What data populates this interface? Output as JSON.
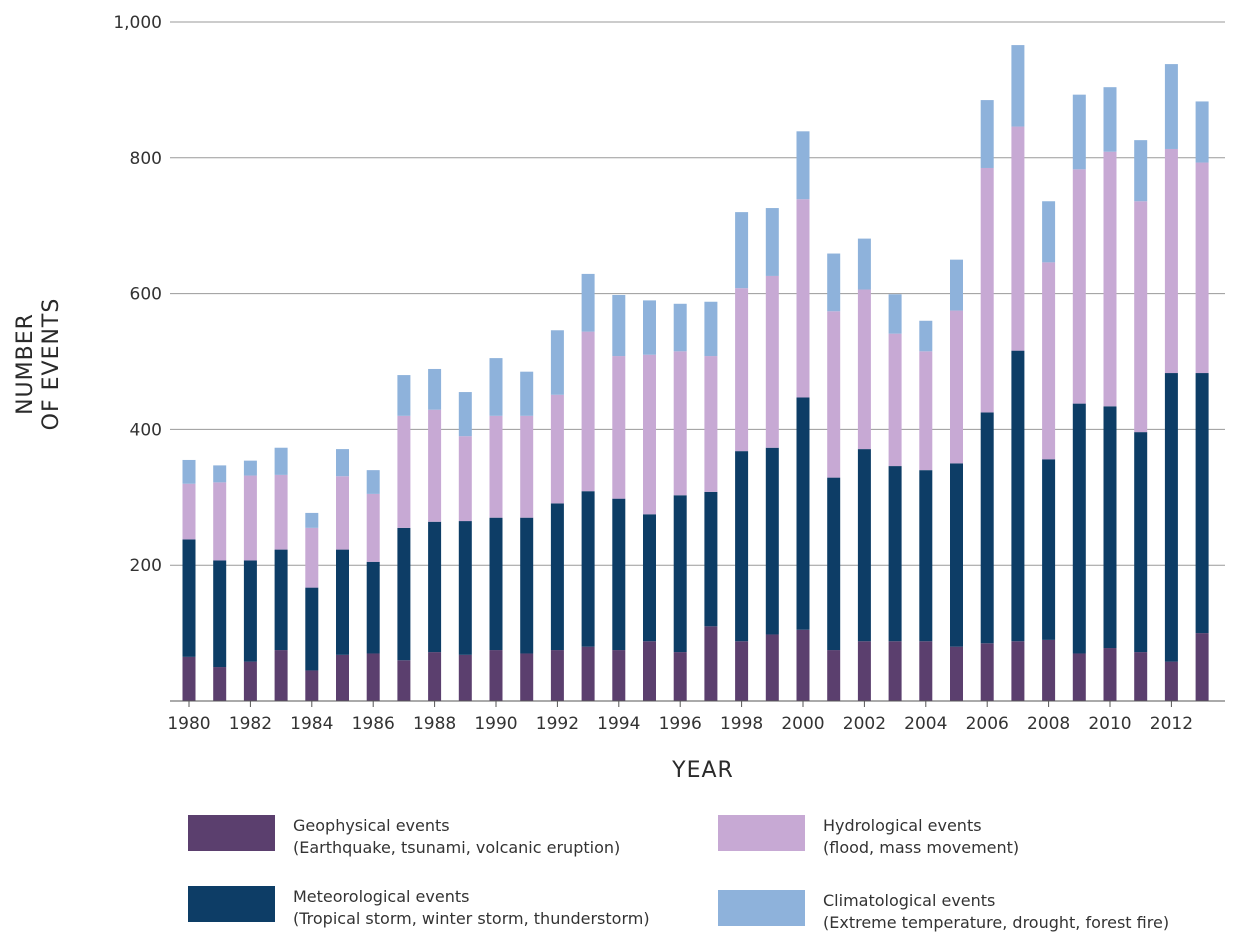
{
  "chart_data": {
    "type": "bar",
    "stacked": true,
    "xlabel": "YEAR",
    "ylabel": [
      "NUMBER",
      "OF EVENTS"
    ],
    "ylim": [
      0,
      1000
    ],
    "yticks": [
      200,
      400,
      600,
      800,
      1000
    ],
    "ytick_labels": [
      "200",
      "400",
      "600",
      "800",
      "1,000"
    ],
    "grid": true,
    "legend_position": "bottom",
    "categories": [
      "1980",
      "1981",
      "1982",
      "1983",
      "1984",
      "1985",
      "1986",
      "1987",
      "1988",
      "1989",
      "1990",
      "1991",
      "1992",
      "1993",
      "1994",
      "1995",
      "1996",
      "1997",
      "1998",
      "1999",
      "2000",
      "2001",
      "2002",
      "2003",
      "2004",
      "2005",
      "2006",
      "2007",
      "2008",
      "2009",
      "2010",
      "2011",
      "2012",
      "2013"
    ],
    "xtick_labels": [
      "1980",
      "1982",
      "1984",
      "1986",
      "1988",
      "1990",
      "1992",
      "1994",
      "1996",
      "1998",
      "2000",
      "2002",
      "2004",
      "2006",
      "2008",
      "2010",
      "2012"
    ],
    "series": [
      {
        "name": "Geophysical events",
        "description": "(Earthquake, tsunami, volcanic eruption)",
        "color": "#5b3f6e",
        "values": [
          65,
          50,
          58,
          75,
          45,
          68,
          70,
          60,
          72,
          68,
          75,
          70,
          75,
          80,
          75,
          88,
          72,
          110,
          88,
          98,
          105,
          75,
          88,
          88,
          88,
          80,
          85,
          88,
          90,
          70,
          78,
          72,
          58,
          100
        ]
      },
      {
        "name": "Meteorological events",
        "description": "(Tropical storm, winter storm, thunderstorm)",
        "color": "#0d3d66",
        "values": [
          173,
          157,
          149,
          148,
          122,
          155,
          135,
          195,
          192,
          197,
          195,
          200,
          216,
          229,
          223,
          187,
          231,
          198,
          280,
          275,
          342,
          254,
          283,
          258,
          252,
          270,
          340,
          428,
          266,
          368,
          356,
          324,
          425,
          383
        ]
      },
      {
        "name": "Hydrological events",
        "description": "(flood, mass movement)",
        "color": "#c7a9d4",
        "values": [
          82,
          115,
          125,
          110,
          88,
          108,
          100,
          165,
          165,
          125,
          150,
          150,
          160,
          235,
          210,
          235,
          212,
          200,
          240,
          253,
          292,
          245,
          235,
          195,
          175,
          225,
          360,
          330,
          290,
          345,
          375,
          340,
          330,
          310
        ]
      },
      {
        "name": "Climatological events",
        "description": "(Extreme temperature, drought, forest fire)",
        "color": "#8eb2db",
        "values": [
          35,
          25,
          22,
          40,
          22,
          40,
          35,
          60,
          60,
          65,
          85,
          65,
          95,
          85,
          90,
          80,
          70,
          80,
          112,
          100,
          100,
          85,
          75,
          58,
          45,
          75,
          100,
          120,
          90,
          110,
          95,
          90,
          125,
          90
        ]
      }
    ]
  }
}
